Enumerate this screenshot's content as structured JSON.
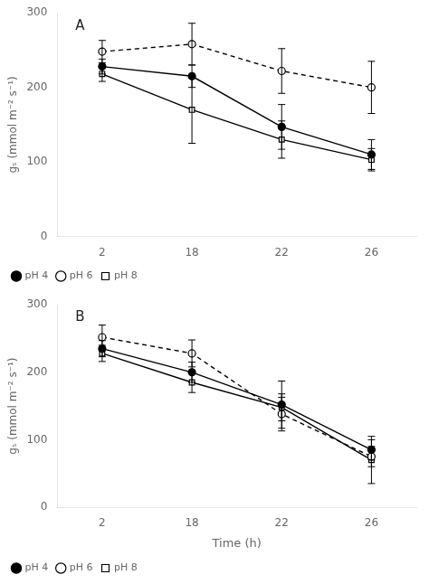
{
  "chart_data": [
    {
      "type": "line",
      "annotations": [
        "A"
      ],
      "ylabel": "gₛ (mmol m⁻² s⁻¹)",
      "categories": [
        "2",
        "18",
        "22",
        "26"
      ],
      "series": [
        {
          "name": "pH 4",
          "color": "black",
          "marker": "filled_circle",
          "line_style": "solid",
          "values": [
            228,
            215,
            147,
            110
          ],
          "yerr": [
            10,
            15,
            30,
            20
          ]
        },
        {
          "name": "pH 6",
          "color": "black",
          "marker": "open_circle",
          "line_style": "dashed",
          "values": [
            248,
            258,
            222,
            200
          ],
          "yerr": [
            15,
            28,
            30,
            35
          ]
        },
        {
          "name": "pH 8",
          "color": "black",
          "marker": "open_square",
          "line_style": "solid",
          "values": [
            218,
            170,
            130,
            103
          ],
          "yerr": [
            10,
            45,
            25,
            15
          ]
        }
      ],
      "ylim": [
        0,
        300
      ],
      "yticks": [
        0,
        100,
        200,
        300
      ],
      "grid": false,
      "legend": "lower left"
    },
    {
      "type": "line",
      "annotations": [
        "B"
      ],
      "xlabel": "Time (h)",
      "ylabel": "gₛ (mmol m⁻² s⁻¹)",
      "categories": [
        "2",
        "18",
        "22",
        "26"
      ],
      "series": [
        {
          "name": "pH 4",
          "color": "black",
          "marker": "filled_circle",
          "line_style": "solid",
          "values": [
            235,
            200,
            152,
            85
          ],
          "yerr": [
            12,
            15,
            35,
            15
          ]
        },
        {
          "name": "pH 6",
          "color": "black",
          "marker": "open_circle",
          "line_style": "dashed",
          "values": [
            252,
            228,
            138,
            75
          ],
          "yerr": [
            18,
            20,
            25,
            15
          ]
        },
        {
          "name": "pH 8",
          "color": "black",
          "marker": "open_square",
          "line_style": "solid",
          "values": [
            228,
            185,
            148,
            70
          ],
          "yerr": [
            12,
            15,
            20,
            35
          ]
        }
      ],
      "ylim": [
        0,
        300
      ],
      "yticks": [
        0,
        100,
        200,
        300
      ],
      "grid": false,
      "legend": "lower left"
    }
  ]
}
